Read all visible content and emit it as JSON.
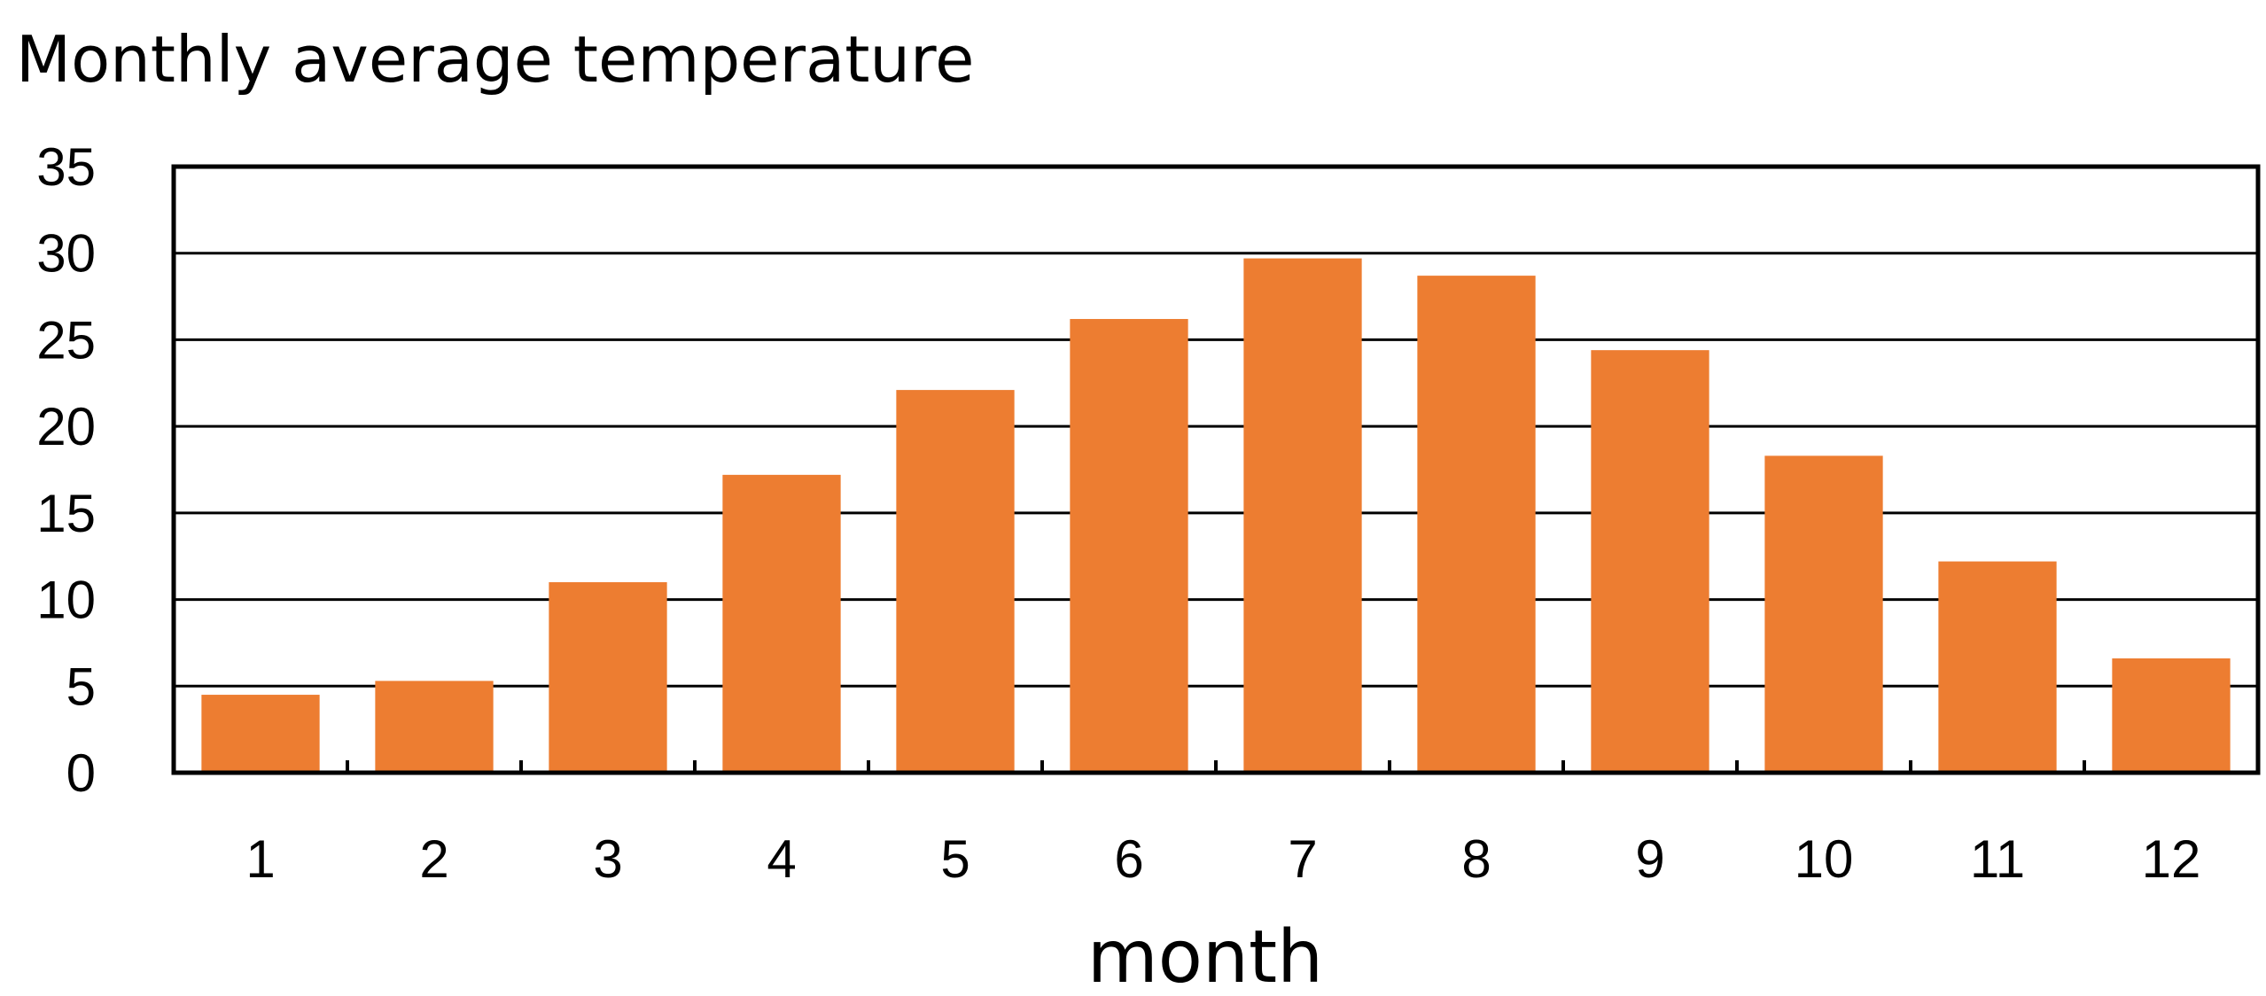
{
  "chart_data": {
    "type": "bar",
    "title": "Monthly average temperature",
    "xlabel": "month",
    "ylabel": "",
    "categories": [
      "1",
      "2",
      "3",
      "4",
      "5",
      "6",
      "7",
      "8",
      "9",
      "10",
      "11",
      "12"
    ],
    "values": [
      4.5,
      5.3,
      11.0,
      17.2,
      22.1,
      26.2,
      29.7,
      28.7,
      24.4,
      18.3,
      12.2,
      6.6
    ],
    "ylim": [
      0,
      35
    ],
    "yticks": [
      0,
      5,
      10,
      15,
      20,
      25,
      30,
      35
    ],
    "grid": true,
    "legend": "none",
    "bar_color": "#ED7D31"
  }
}
